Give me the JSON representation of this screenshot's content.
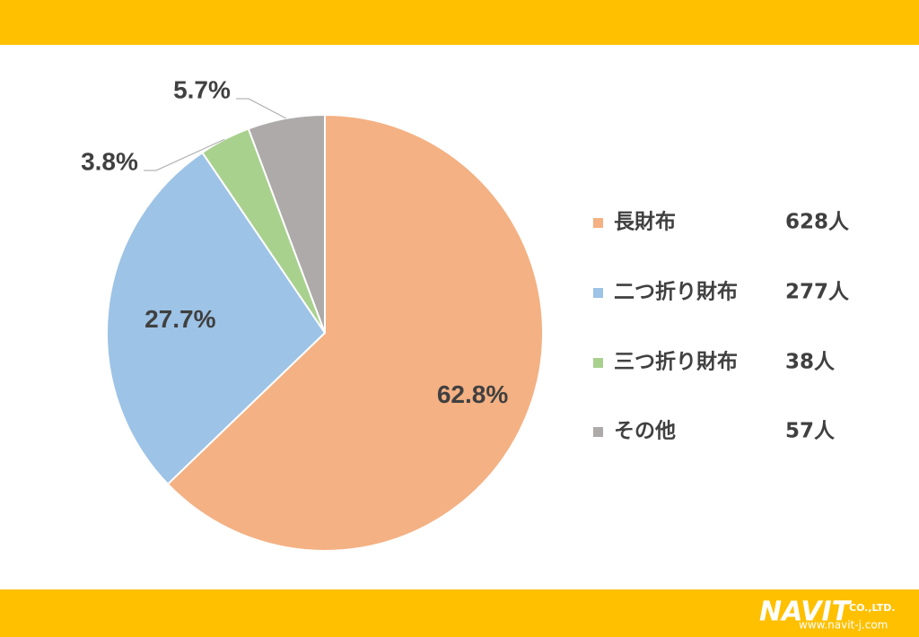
{
  "chart_data": {
    "type": "pie",
    "categories": [
      "長財布",
      "二つ折り財布",
      "三つ折り財布",
      "その他"
    ],
    "values": [
      62.8,
      27.7,
      3.8,
      5.7
    ],
    "value_labels": [
      "62.8%",
      "27.7%",
      "3.8%",
      "5.7%"
    ],
    "colors": [
      "#F4B183",
      "#9DC3E6",
      "#A9D18E",
      "#AEAAAA"
    ],
    "counts": [
      628,
      277,
      38,
      57
    ],
    "count_labels": [
      "628人",
      "277人",
      "38人",
      "57人"
    ],
    "legend": "right"
  },
  "footer": {
    "brand": "NAVIT",
    "suffix": "CO.,LTD.",
    "url": "www.navit-j.com"
  }
}
